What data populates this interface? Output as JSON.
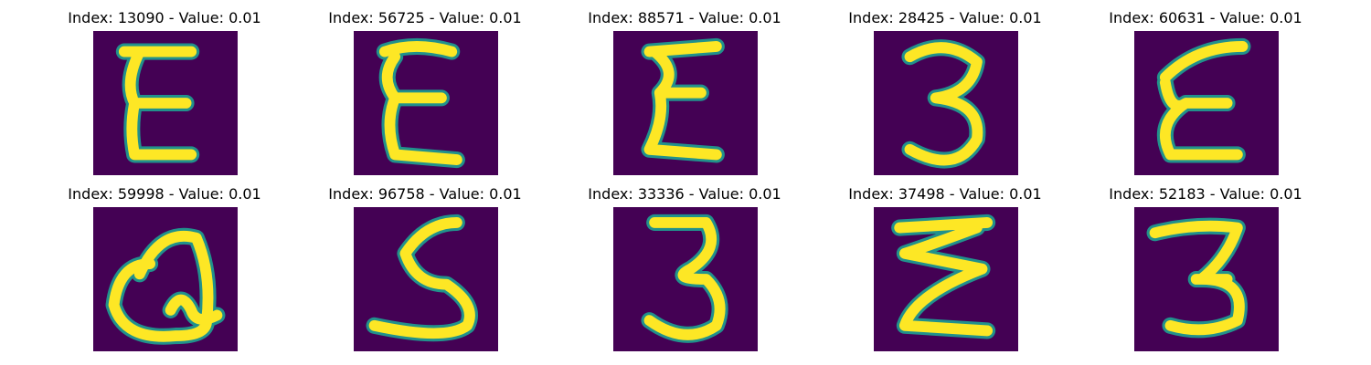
{
  "colors": {
    "background": "#440154",
    "stroke_edge": "#21918c",
    "stroke_core": "#fde725"
  },
  "panels": [
    {
      "title": "Index: 13090 - Value: 0.01",
      "glyph": "E"
    },
    {
      "title": "Index: 56725 - Value: 0.01",
      "glyph": "E"
    },
    {
      "title": "Index: 88571 - Value: 0.01",
      "glyph": "E"
    },
    {
      "title": "Index: 28425 - Value: 0.01",
      "glyph": "3"
    },
    {
      "title": "Index: 60631 - Value: 0.01",
      "glyph": "E"
    },
    {
      "title": "Index: 59998 - Value: 0.01",
      "glyph": "Q"
    },
    {
      "title": "Index: 96758 - Value: 0.01",
      "glyph": "S"
    },
    {
      "title": "Index: 33336 - Value: 0.01",
      "glyph": "3"
    },
    {
      "title": "Index: 37498 - Value: 0.01",
      "glyph": "Z"
    },
    {
      "title": "Index: 52183 - Value: 0.01",
      "glyph": "3"
    }
  ]
}
